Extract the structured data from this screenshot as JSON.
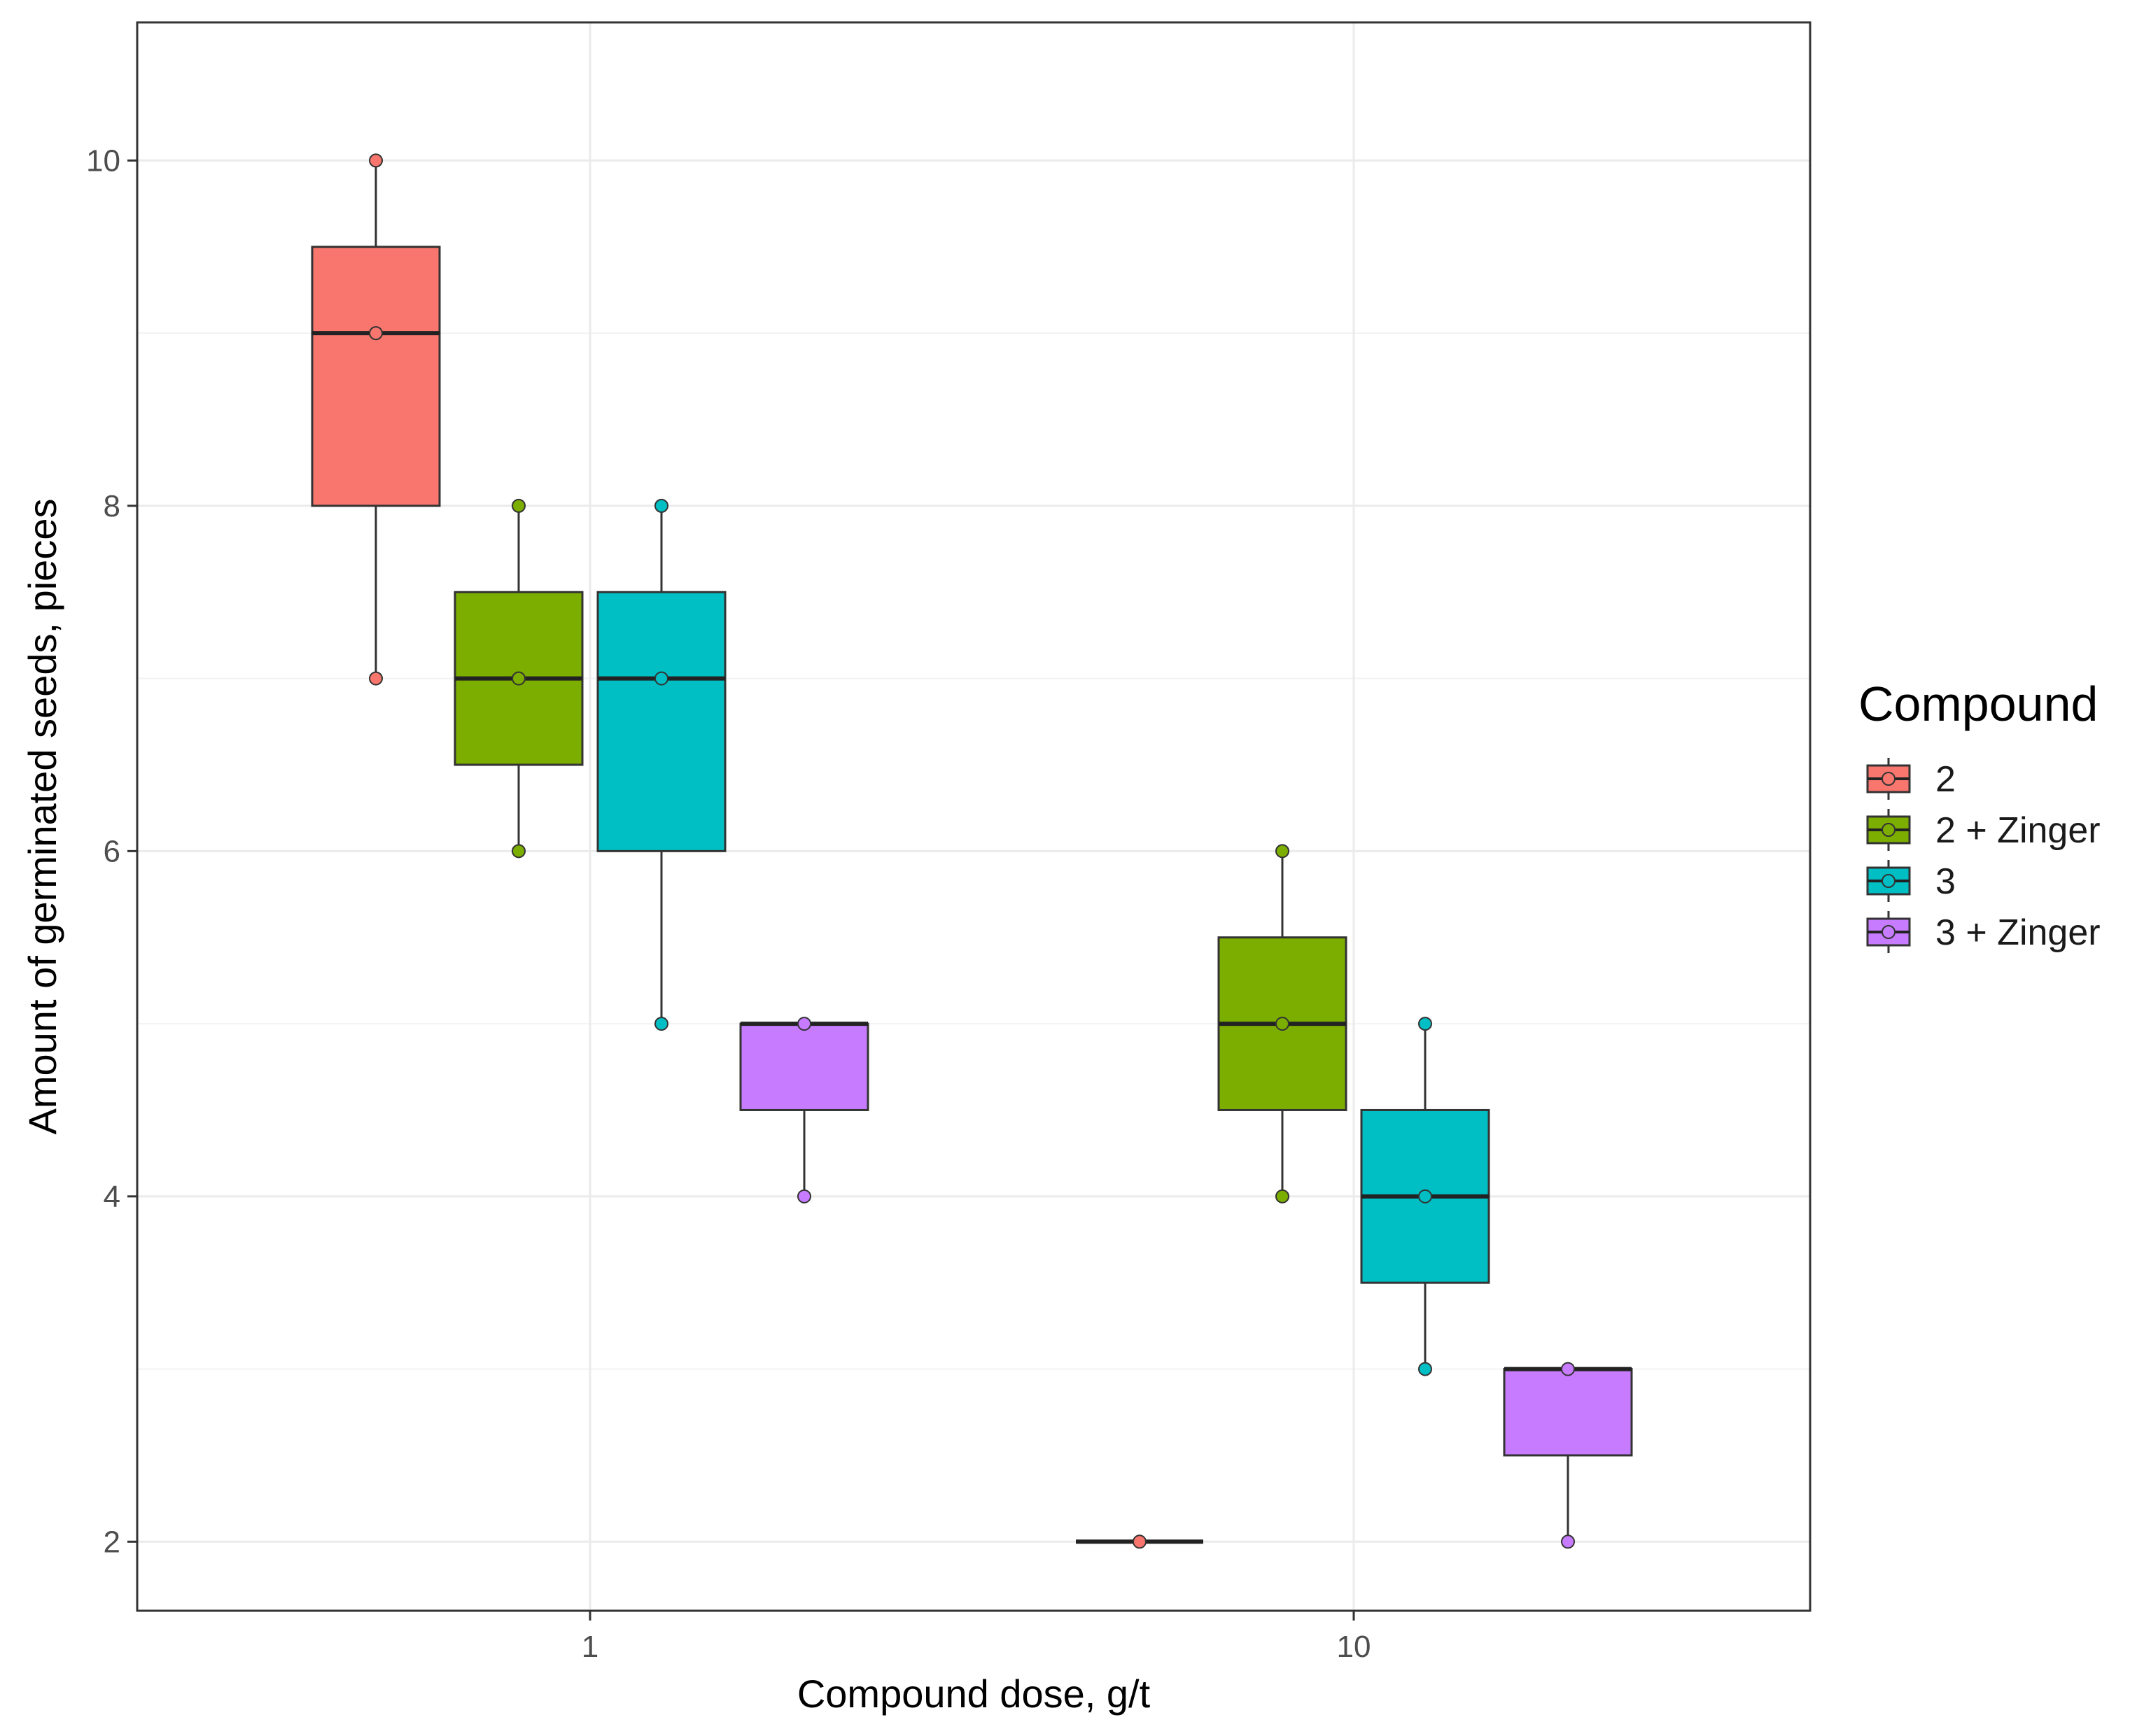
{
  "chart_data": {
    "type": "box",
    "xlabel": "Compound dose, g/t",
    "ylabel": "Amount of germinated seeds, pieces",
    "ylim": [
      1.6,
      10.8
    ],
    "yticks": [
      2,
      4,
      6,
      8,
      10
    ],
    "categories": [
      "1",
      "10"
    ],
    "grid": true,
    "legend": {
      "title": "Compound",
      "position": "right",
      "entries": [
        "2",
        "2 + Zinger",
        "3",
        "3 + Zinger"
      ]
    },
    "series": [
      {
        "name": "2",
        "color": "#F8766D",
        "boxes": [
          {
            "category": "1",
            "min": 7,
            "q1": 8,
            "median": 9,
            "q3": 9.5,
            "max": 10,
            "points": [
              7,
              9,
              10
            ]
          },
          {
            "category": "10",
            "min": 2,
            "q1": 2,
            "median": 2,
            "q3": 2,
            "max": 2,
            "points": [
              2
            ]
          }
        ]
      },
      {
        "name": "2 + Zinger",
        "color": "#7CAE00",
        "boxes": [
          {
            "category": "1",
            "min": 6,
            "q1": 6.5,
            "median": 7,
            "q3": 7.5,
            "max": 8,
            "points": [
              6,
              7,
              8
            ]
          },
          {
            "category": "10",
            "min": 4,
            "q1": 4.5,
            "median": 5,
            "q3": 5.5,
            "max": 6,
            "points": [
              4,
              5,
              6
            ]
          }
        ]
      },
      {
        "name": "3",
        "color": "#00BFC4",
        "boxes": [
          {
            "category": "1",
            "min": 5,
            "q1": 6,
            "median": 7,
            "q3": 7.5,
            "max": 8,
            "points": [
              5,
              7,
              8
            ]
          },
          {
            "category": "10",
            "min": 3,
            "q1": 3.5,
            "median": 4,
            "q3": 4.5,
            "max": 5,
            "points": [
              3,
              4,
              5
            ]
          }
        ]
      },
      {
        "name": "3 + Zinger",
        "color": "#C77CFF",
        "boxes": [
          {
            "category": "1",
            "min": 4,
            "q1": 4.5,
            "median": 5,
            "q3": 5,
            "max": 5,
            "points": [
              4,
              5
            ]
          },
          {
            "category": "10",
            "min": 2,
            "q1": 2.5,
            "median": 3,
            "q3": 3,
            "max": 3,
            "points": [
              2,
              3
            ]
          }
        ]
      }
    ]
  }
}
